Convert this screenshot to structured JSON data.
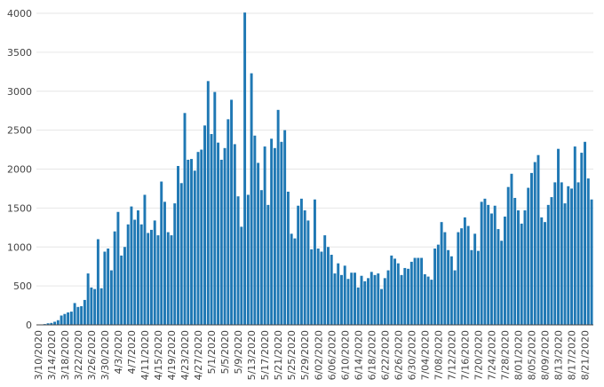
{
  "chart_data": {
    "type": "bar",
    "title": "",
    "xlabel": "",
    "ylabel": "",
    "ylim": [
      0,
      4000
    ],
    "yticks": [
      0,
      500,
      1000,
      1500,
      2000,
      2500,
      3000,
      3500,
      4000
    ],
    "grid": "horizontal",
    "legend": "none",
    "colors": {
      "bar": "#1f78b4",
      "grid": "#e6e6e6",
      "text": "#444444"
    },
    "x_start": "3/10/2020",
    "x_end": "8/26/2020",
    "xtick_labels": [
      "3/10/2020",
      "3/14/2020",
      "3/18/2020",
      "3/22/2020",
      "3/26/2020",
      "3/30/2020",
      "4/3/2020",
      "4/7/2020",
      "4/11/2020",
      "4/15/2020",
      "4/19/2020",
      "4/23/2020",
      "4/27/2020",
      "5/1/2020",
      "5/5/2020",
      "5/9/2020",
      "5/13/2020",
      "5/17/2020",
      "5/21/2020",
      "5/25/2020",
      "5/29/2020",
      "6/02/2020",
      "6/06/2020",
      "6/10/2020",
      "6/14/2020",
      "6/18/2020",
      "6/22/2020",
      "6/26/2020",
      "6/30/2020",
      "7/04/2020",
      "7/08/2020",
      "7/12/2020",
      "7/16/2020",
      "7/20/2020",
      "7/24/2020",
      "7/28/2020",
      "8/01/2020",
      "8/05/2020",
      "8/09/2020",
      "8/13/2020",
      "8/17/2020",
      "8/21/2020"
    ],
    "values": [
      2,
      5,
      10,
      20,
      25,
      40,
      60,
      120,
      140,
      160,
      170,
      280,
      230,
      240,
      320,
      660,
      480,
      460,
      1100,
      470,
      940,
      980,
      700,
      1200,
      1450,
      890,
      1000,
      1290,
      1520,
      1350,
      1470,
      1290,
      1670,
      1180,
      1220,
      1340,
      1150,
      1840,
      1580,
      1190,
      1150,
      1560,
      2040,
      1820,
      2720,
      2120,
      2130,
      1980,
      2220,
      2250,
      2560,
      3130,
      2450,
      2990,
      2340,
      2120,
      2270,
      2640,
      2890,
      2320,
      1650,
      1260,
      4010,
      1670,
      3230,
      2430,
      2080,
      1730,
      2290,
      1540,
      2390,
      2270,
      2760,
      2350,
      2500,
      1710,
      1170,
      1110,
      1530,
      1620,
      1470,
      1340,
      970,
      1610,
      980,
      940,
      1150,
      1000,
      900,
      660,
      790,
      640,
      760,
      590,
      670,
      670,
      480,
      630,
      560,
      600,
      680,
      640,
      660,
      460,
      600,
      700,
      890,
      850,
      790,
      640,
      730,
      720,
      810,
      860,
      860,
      860,
      650,
      620,
      580,
      980,
      1030,
      1320,
      1190,
      960,
      880,
      700,
      1190,
      1240,
      1380,
      1270,
      960,
      1170,
      950,
      1580,
      1620,
      1540,
      1430,
      1530,
      1230,
      1080,
      1390,
      1770,
      1940,
      1630,
      1470,
      1300,
      1470,
      1760,
      1950,
      2090,
      2180,
      1380,
      1320,
      1540,
      1640,
      1830,
      2260,
      1830,
      1560,
      1780,
      1750,
      2290,
      1830,
      2210,
      2350,
      1880,
      1610
    ]
  }
}
